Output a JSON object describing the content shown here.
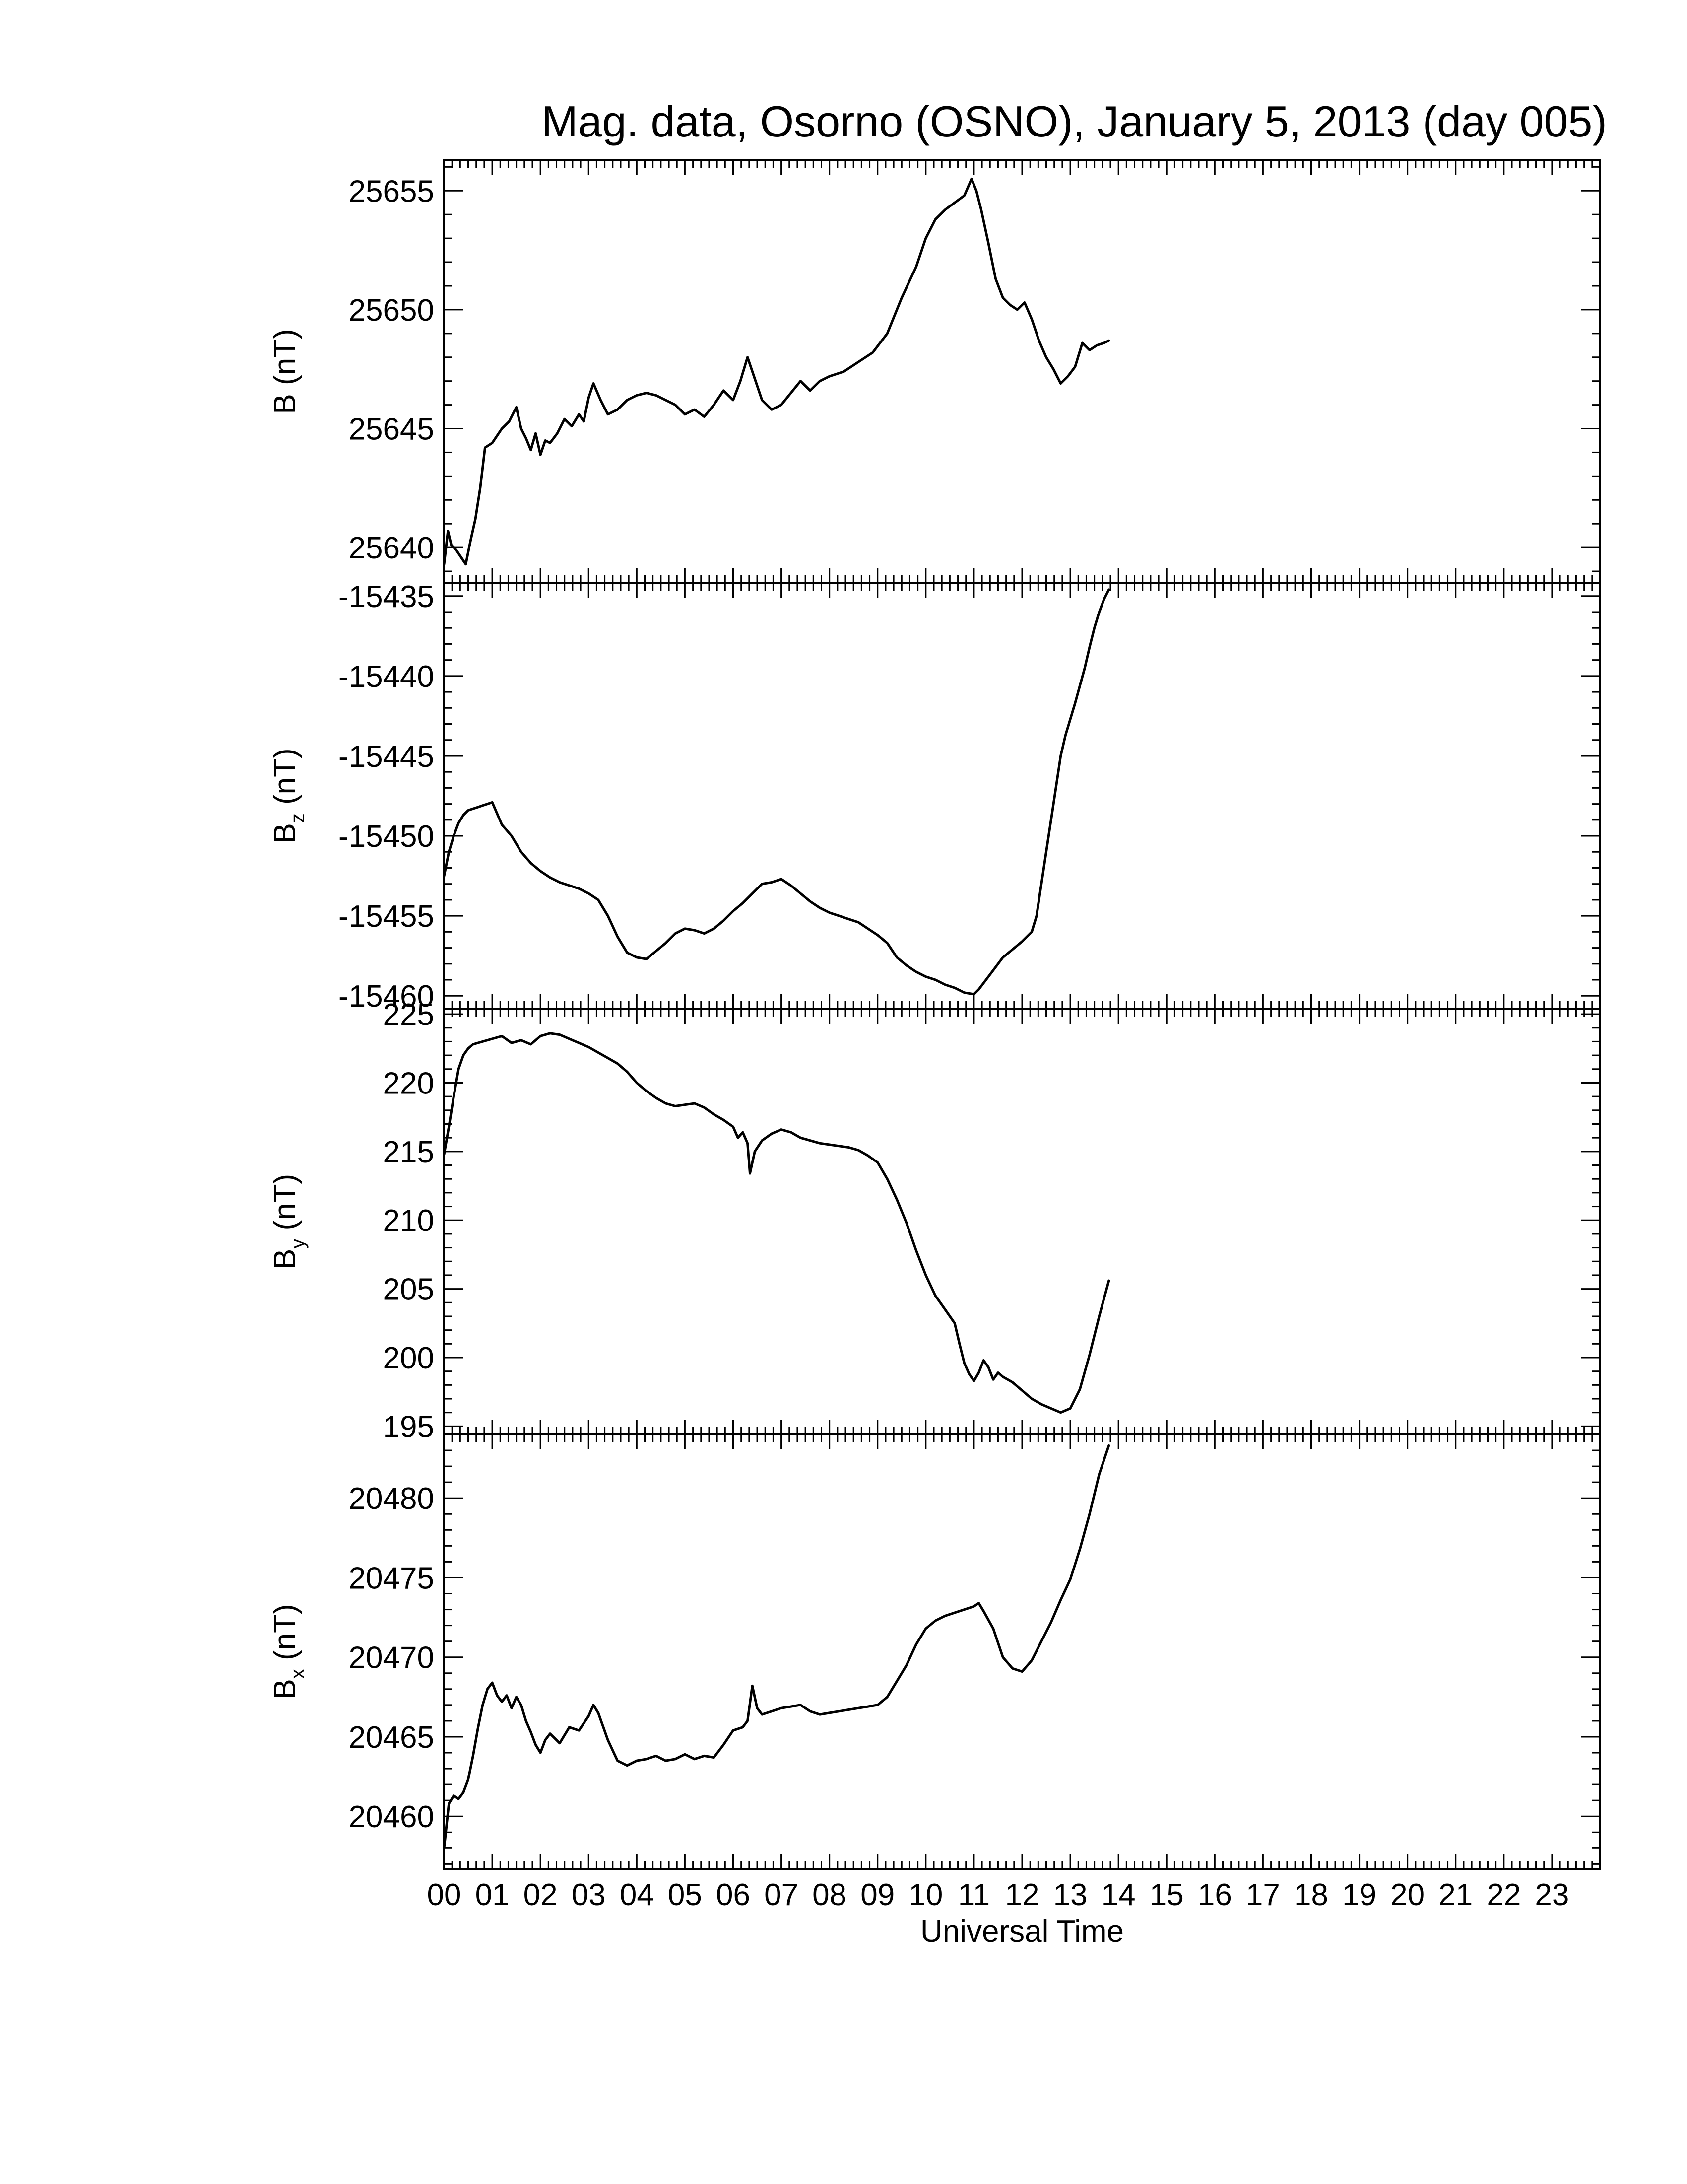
{
  "chart_data": {
    "type": "line",
    "title": "Mag. data, Osorno (OSNO), January 5, 2013 (day 005)",
    "xlabel": "Universal Time",
    "xlim": [
      0,
      24
    ],
    "x_tick_labels": [
      "00",
      "01",
      "02",
      "03",
      "04",
      "05",
      "06",
      "07",
      "08",
      "09",
      "10",
      "11",
      "12",
      "13",
      "14",
      "15",
      "16",
      "17",
      "18",
      "19",
      "20",
      "21",
      "22",
      "23"
    ],
    "panels": [
      {
        "id": "b",
        "ylabel_main": "B",
        "ylabel_sub": "",
        "ylabel_unit": " (nT)",
        "ylim": [
          25638.5,
          25656.3
        ],
        "yticks": [
          25640,
          25645,
          25650,
          25655
        ],
        "ytick_labels": [
          "25640",
          "25645",
          "25650",
          "25655"
        ],
        "series": [
          {
            "x": [
              0,
              0.08,
              0.15,
              0.25,
              0.35,
              0.45,
              0.55,
              0.65,
              0.75,
              0.85,
              1.0,
              1.1,
              1.2,
              1.35,
              1.5,
              1.6,
              1.7,
              1.8,
              1.9,
              2.0,
              2.1,
              2.2,
              2.35,
              2.5,
              2.65,
              2.8,
              2.9,
              3.0,
              3.1,
              3.25,
              3.4,
              3.6,
              3.8,
              4.0,
              4.2,
              4.4,
              4.6,
              4.8,
              5.0,
              5.2,
              5.4,
              5.6,
              5.8,
              6.0,
              6.15,
              6.3,
              6.45,
              6.6,
              6.8,
              7.0,
              7.2,
              7.4,
              7.6,
              7.8,
              8.0,
              8.3,
              8.6,
              8.9,
              9.2,
              9.5,
              9.8,
              10.0,
              10.2,
              10.4,
              10.6,
              10.8,
              10.95,
              11.05,
              11.15,
              11.3,
              11.45,
              11.6,
              11.75,
              11.9,
              12.05,
              12.2,
              12.35,
              12.5,
              12.65,
              12.8,
              12.95,
              13.1,
              13.25,
              13.4,
              13.55,
              13.7,
              13.8
            ],
            "y": [
              25639.3,
              25640.7,
              25640.1,
              25639.9,
              25639.6,
              25639.3,
              25640.3,
              25641.2,
              25642.5,
              25644.2,
              25644.4,
              25644.7,
              25645.0,
              25645.3,
              25645.9,
              25645.0,
              25644.6,
              25644.1,
              25644.8,
              25643.9,
              25644.5,
              25644.4,
              25644.8,
              25645.4,
              25645.1,
              25645.6,
              25645.3,
              25646.3,
              25646.9,
              25646.2,
              25645.6,
              25645.8,
              25646.2,
              25646.4,
              25646.5,
              25646.4,
              25646.2,
              25646.0,
              25645.6,
              25645.8,
              25645.5,
              25646.0,
              25646.6,
              25646.2,
              25647.0,
              25648.0,
              25647.1,
              25646.2,
              25645.8,
              25646.0,
              25646.5,
              25647.0,
              25646.6,
              25647.0,
              25647.2,
              25647.4,
              25647.8,
              25648.2,
              25649.0,
              25650.5,
              25651.8,
              25653.0,
              25653.8,
              25654.2,
              25654.5,
              25654.8,
              25655.5,
              25655.0,
              25654.2,
              25652.8,
              25651.3,
              25650.5,
              25650.2,
              25650.0,
              25650.3,
              25649.6,
              25648.7,
              25648.0,
              25647.5,
              25646.9,
              25647.2,
              25647.6,
              25648.6,
              25648.3,
              25648.5,
              25648.6,
              25648.7
            ]
          }
        ]
      },
      {
        "id": "bz",
        "ylabel_main": "B",
        "ylabel_sub": "z",
        "ylabel_unit": " (nT)",
        "ylim": [
          -15460.8,
          -15434.2
        ],
        "yticks": [
          -15460,
          -15455,
          -15450,
          -15445,
          -15440,
          -15435
        ],
        "ytick_labels": [
          "-15460",
          "-15455",
          "-15450",
          "-15445",
          "-15440",
          "-15435"
        ],
        "series": [
          {
            "x": [
              0,
              0.1,
              0.2,
              0.3,
              0.4,
              0.5,
              0.6,
              0.7,
              0.8,
              0.9,
              1.0,
              1.1,
              1.2,
              1.4,
              1.6,
              1.8,
              2.0,
              2.2,
              2.4,
              2.6,
              2.8,
              3.0,
              3.2,
              3.4,
              3.6,
              3.8,
              4.0,
              4.2,
              4.4,
              4.6,
              4.8,
              5.0,
              5.2,
              5.4,
              5.6,
              5.8,
              6.0,
              6.2,
              6.4,
              6.6,
              6.8,
              7.0,
              7.2,
              7.4,
              7.6,
              7.8,
              8.0,
              8.2,
              8.4,
              8.6,
              8.8,
              9.0,
              9.2,
              9.4,
              9.6,
              9.8,
              10.0,
              10.2,
              10.4,
              10.6,
              10.8,
              11.0,
              11.1,
              11.2,
              11.4,
              11.6,
              11.8,
              12.0,
              12.2,
              12.3,
              12.4,
              12.5,
              12.6,
              12.7,
              12.8,
              12.9,
              13.0,
              13.1,
              13.2,
              13.3,
              13.4,
              13.5,
              13.6,
              13.7,
              13.8
            ],
            "y": [
              -15452.5,
              -15451.0,
              -15450.0,
              -15449.2,
              -15448.7,
              -15448.4,
              -15448.3,
              -15448.2,
              -15448.1,
              -15448.0,
              -15447.9,
              -15448.6,
              -15449.3,
              -15450.0,
              -15451.0,
              -15451.7,
              -15452.2,
              -15452.6,
              -15452.9,
              -15453.1,
              -15453.3,
              -15453.6,
              -15454.0,
              -15455.0,
              -15456.3,
              -15457.3,
              -15457.6,
              -15457.7,
              -15457.2,
              -15456.7,
              -15456.1,
              -15455.8,
              -15455.9,
              -15456.1,
              -15455.8,
              -15455.3,
              -15454.7,
              -15454.2,
              -15453.6,
              -15453.0,
              -15452.9,
              -15452.7,
              -15453.1,
              -15453.6,
              -15454.1,
              -15454.5,
              -15454.8,
              -15455.0,
              -15455.2,
              -15455.4,
              -15455.8,
              -15456.2,
              -15456.7,
              -15457.6,
              -15458.1,
              -15458.5,
              -15458.8,
              -15459.0,
              -15459.3,
              -15459.5,
              -15459.8,
              -15459.9,
              -15459.6,
              -15459.2,
              -15458.4,
              -15457.6,
              -15457.1,
              -15456.6,
              -15456.0,
              -15455.0,
              -15453.0,
              -15451.0,
              -15449.0,
              -15447.0,
              -15445.0,
              -15443.7,
              -15442.7,
              -15441.7,
              -15440.6,
              -15439.5,
              -15438.2,
              -15437.0,
              -15436.0,
              -15435.2,
              -15434.6
            ]
          }
        ]
      },
      {
        "id": "by",
        "ylabel_main": "B",
        "ylabel_sub": "y",
        "ylabel_unit": " (nT)",
        "ylim": [
          194.4,
          225.4
        ],
        "yticks": [
          195,
          200,
          205,
          210,
          215,
          220,
          225
        ],
        "ytick_labels": [
          "195",
          "200",
          "205",
          "210",
          "215",
          "220",
          "225"
        ],
        "series": [
          {
            "x": [
              0,
              0.1,
              0.2,
              0.3,
              0.4,
              0.5,
              0.6,
              0.8,
              1.0,
              1.2,
              1.4,
              1.6,
              1.8,
              2.0,
              2.2,
              2.4,
              2.6,
              2.8,
              3.0,
              3.2,
              3.4,
              3.6,
              3.8,
              4.0,
              4.2,
              4.4,
              4.6,
              4.8,
              5.0,
              5.2,
              5.4,
              5.6,
              5.8,
              6.0,
              6.1,
              6.2,
              6.3,
              6.35,
              6.45,
              6.6,
              6.8,
              7.0,
              7.2,
              7.4,
              7.6,
              7.8,
              8.0,
              8.2,
              8.4,
              8.6,
              8.8,
              9.0,
              9.2,
              9.4,
              9.6,
              9.8,
              10.0,
              10.2,
              10.4,
              10.6,
              10.7,
              10.8,
              10.9,
              11.0,
              11.1,
              11.2,
              11.3,
              11.4,
              11.5,
              11.6,
              11.8,
              12.0,
              12.2,
              12.4,
              12.6,
              12.8,
              13.0,
              13.2,
              13.4,
              13.6,
              13.8
            ],
            "y": [
              214.8,
              216.8,
              219.0,
              221.0,
              222.0,
              222.5,
              222.8,
              223.0,
              223.2,
              223.4,
              222.9,
              223.1,
              222.8,
              223.4,
              223.6,
              223.5,
              223.2,
              222.9,
              222.6,
              222.2,
              221.8,
              221.4,
              220.8,
              220.0,
              219.4,
              218.9,
              218.5,
              218.3,
              218.4,
              218.5,
              218.2,
              217.7,
              217.3,
              216.8,
              216.0,
              216.4,
              215.6,
              213.4,
              215.0,
              215.8,
              216.3,
              216.6,
              216.4,
              216.0,
              215.8,
              215.6,
              215.5,
              215.4,
              215.3,
              215.1,
              214.7,
              214.2,
              213.0,
              211.5,
              209.8,
              207.8,
              206.0,
              204.5,
              203.5,
              202.5,
              201.0,
              199.6,
              198.8,
              198.3,
              198.9,
              199.8,
              199.3,
              198.4,
              198.9,
              198.6,
              198.2,
              197.6,
              197.0,
              196.6,
              196.3,
              196.0,
              196.3,
              197.7,
              200.2,
              203.0,
              205.6
            ]
          }
        ]
      },
      {
        "id": "bx",
        "ylabel_main": "B",
        "ylabel_sub": "x",
        "ylabel_unit": " (nT)",
        "ylim": [
          20456.7,
          20484.0
        ],
        "yticks": [
          20460,
          20465,
          20470,
          20475,
          20480
        ],
        "ytick_labels": [
          "20460",
          "20465",
          "20470",
          "20475",
          "20480"
        ],
        "series": [
          {
            "x": [
              0,
              0.1,
              0.2,
              0.3,
              0.4,
              0.5,
              0.6,
              0.7,
              0.8,
              0.9,
              1.0,
              1.1,
              1.2,
              1.3,
              1.4,
              1.5,
              1.6,
              1.7,
              1.8,
              1.9,
              2.0,
              2.1,
              2.2,
              2.4,
              2.6,
              2.8,
              3.0,
              3.1,
              3.2,
              3.4,
              3.6,
              3.8,
              4.0,
              4.2,
              4.4,
              4.6,
              4.8,
              5.0,
              5.2,
              5.4,
              5.6,
              5.8,
              6.0,
              6.2,
              6.3,
              6.4,
              6.5,
              6.6,
              6.8,
              7.0,
              7.2,
              7.4,
              7.6,
              7.8,
              8.0,
              8.2,
              8.4,
              8.6,
              8.8,
              9.0,
              9.2,
              9.4,
              9.6,
              9.8,
              10.0,
              10.2,
              10.4,
              10.6,
              10.8,
              11.0,
              11.1,
              11.2,
              11.4,
              11.6,
              11.8,
              12.0,
              12.2,
              12.4,
              12.6,
              12.8,
              13.0,
              13.2,
              13.4,
              13.6,
              13.8
            ],
            "y": [
              20458.0,
              20460.8,
              20461.3,
              20461.1,
              20461.5,
              20462.3,
              20463.8,
              20465.5,
              20467.0,
              20468.0,
              20468.4,
              20467.6,
              20467.2,
              20467.6,
              20466.8,
              20467.5,
              20467.0,
              20466.0,
              20465.3,
              20464.5,
              20464.0,
              20464.8,
              20465.2,
              20464.6,
              20465.6,
              20465.4,
              20466.3,
              20467.0,
              20466.5,
              20464.8,
              20463.5,
              20463.2,
              20463.5,
              20463.6,
              20463.8,
              20463.5,
              20463.6,
              20463.9,
              20463.6,
              20463.8,
              20463.7,
              20464.5,
              20465.4,
              20465.6,
              20466.0,
              20468.2,
              20466.8,
              20466.4,
              20466.6,
              20466.8,
              20466.9,
              20467.0,
              20466.6,
              20466.4,
              20466.5,
              20466.6,
              20466.7,
              20466.8,
              20466.9,
              20467.0,
              20467.5,
              20468.5,
              20469.5,
              20470.8,
              20471.8,
              20472.3,
              20472.6,
              20472.8,
              20473.0,
              20473.2,
              20473.4,
              20472.9,
              20471.8,
              20470.0,
              20469.3,
              20469.1,
              20469.8,
              20471.0,
              20472.2,
              20473.6,
              20474.9,
              20476.8,
              20479.0,
              20481.5,
              20483.3
            ]
          }
        ]
      }
    ]
  }
}
